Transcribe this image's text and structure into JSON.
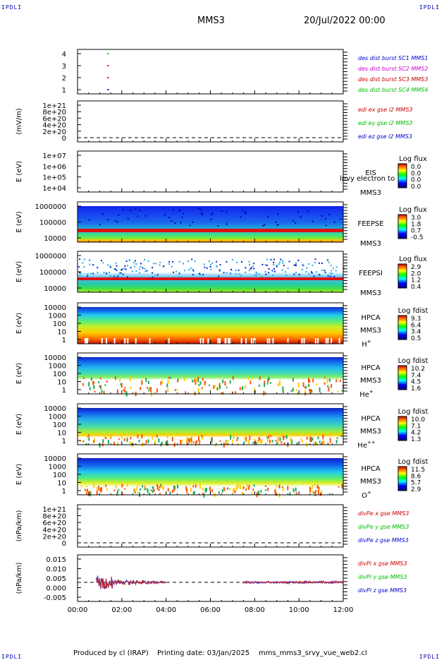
{
  "header": {
    "corner_left": "IPDLI",
    "corner_right": "IPDLI",
    "spacecraft": "MMS3",
    "date_time": "20/Jul/2022 00:00",
    "footer_left_corner": "IPDLI",
    "footer_right_corner": "IPDLI"
  },
  "footer": {
    "produced": "Produced by cl (IRAP)",
    "printing": "Printing date: 03/Jan/2025",
    "script": "mms_mms3_srvy_vue_web2.cl"
  },
  "chart_data": [
    {
      "id": "panel-burst",
      "type": "scatter",
      "ylabel": "",
      "yticks": [
        "4",
        "3",
        "2",
        "1"
      ],
      "ylim": [
        0.5,
        4.5
      ],
      "legend": [
        {
          "text": "des dist burst SC1 MMS1",
          "color": "#0000cc"
        },
        {
          "text": "des dist burst SC2 MMS2",
          "color": "#cc00cc"
        },
        {
          "text": "des dist burst SC3 MMS3",
          "color": "#cc0000"
        },
        {
          "text": "des dist burst SC4 MMS4",
          "color": "#00bb00"
        }
      ],
      "points": [
        {
          "x": 1.35,
          "y": 4,
          "color": "#00bb00"
        },
        {
          "x": 1.35,
          "y": 3,
          "color": "#cc0000"
        },
        {
          "x": 1.35,
          "y": 2,
          "color": "#cc0000"
        },
        {
          "x": 1.35,
          "y": 1,
          "color": "#0000cc"
        }
      ]
    },
    {
      "id": "panel-edi",
      "type": "line",
      "ylabel": "(mV/m)",
      "yticks": [
        "1e+21",
        "8e+20",
        "6e+20",
        "4e+20",
        "2e+20",
        "0"
      ],
      "legend": [
        {
          "text": "edi ex gse l2 MMS3",
          "color": "#cc0000"
        },
        {
          "text": "edi ey gse l2 MMS3",
          "color": "#00bb00"
        },
        {
          "text": "edi ez gse l2 MMS3",
          "color": "#0000cc"
        }
      ]
    },
    {
      "id": "panel-eis",
      "type": "heatmap",
      "ylabel": "E (eV)",
      "yticks": [
        "1e+07",
        "1e+06",
        "1e+05",
        "1e+04"
      ],
      "instrument": "EIS",
      "spacecraft": "MMS3",
      "overlay": "lnvy electron to",
      "colorbar_title": "Log flux",
      "colorbar_ticks": [
        "0.0",
        "0.0",
        "0.0",
        "0.0"
      ]
    },
    {
      "id": "panel-feepse",
      "type": "heatmap",
      "ylabel": "E (eV)",
      "yticks": [
        "1000000",
        "100000",
        "10000"
      ],
      "instrument": "FEEPSE",
      "spacecraft": "MMS3",
      "colorbar_title": "Log flux",
      "colorbar_ticks": [
        "3.0",
        "1.8",
        "0.7",
        "-0.5"
      ]
    },
    {
      "id": "panel-feepsi",
      "type": "heatmap",
      "ylabel": "E (eV)",
      "yticks": [
        "1000000",
        "100000",
        "10000"
      ],
      "instrument": "FEEPSI",
      "spacecraft": "MMS3",
      "colorbar_title": "Log flux",
      "colorbar_ticks": [
        "2.9",
        "2.0",
        "1.2",
        "0.4"
      ]
    },
    {
      "id": "panel-hpca-h",
      "type": "heatmap",
      "ylabel": "E (eV)",
      "yticks": [
        "10000",
        "1000",
        "100",
        "10",
        "1"
      ],
      "instrument": "HPCA",
      "spacecraft": "MMS3",
      "species": "H",
      "species_sup": "+",
      "colorbar_title": "Log fdist",
      "colorbar_ticks": [
        "9.3",
        "6.4",
        "3.4",
        "0.5"
      ]
    },
    {
      "id": "panel-hpca-he",
      "type": "heatmap",
      "ylabel": "E (eV)",
      "yticks": [
        "10000",
        "1000",
        "100",
        "10",
        "1"
      ],
      "instrument": "HPCA",
      "spacecraft": "MMS3",
      "species": "He",
      "species_sup": "+",
      "colorbar_title": "Log fdist",
      "colorbar_ticks": [
        "10.2",
        "7.4",
        "4.5",
        "1.6"
      ]
    },
    {
      "id": "panel-hpca-he2",
      "type": "heatmap",
      "ylabel": "E (eV)",
      "yticks": [
        "10000",
        "1000",
        "100",
        "10",
        "1"
      ],
      "instrument": "HPCA",
      "spacecraft": "MMS3",
      "species": "He",
      "species_sup": "++",
      "colorbar_title": "Log fdist",
      "colorbar_ticks": [
        "10.0",
        "7.1",
        "4.2",
        "1.3"
      ]
    },
    {
      "id": "panel-hpca-o",
      "type": "heatmap",
      "ylabel": "E (eV)",
      "yticks": [
        "10000",
        "1000",
        "100",
        "10",
        "1"
      ],
      "instrument": "HPCA",
      "spacecraft": "MMS3",
      "species": "O",
      "species_sup": "+",
      "colorbar_title": "Log fdist",
      "colorbar_ticks": [
        "11.5",
        "8.6",
        "5.7",
        "2.9"
      ]
    },
    {
      "id": "panel-divpe",
      "type": "line",
      "ylabel": "(nPa/km)",
      "yticks": [
        "1e+21",
        "8e+20",
        "6e+20",
        "4e+20",
        "2e+20",
        "0"
      ],
      "legend": [
        {
          "text": "divPe x gse MMS3",
          "color": "#cc0000"
        },
        {
          "text": "divPe y gse MMS3",
          "color": "#00bb00"
        },
        {
          "text": "divPe z gse MMS3",
          "color": "#0000cc"
        }
      ]
    },
    {
      "id": "panel-divpi",
      "type": "line",
      "ylabel": "(nPa/km)",
      "yticks": [
        "0.015",
        "0.010",
        "0.005",
        "0.000",
        "-0.005"
      ],
      "ylim": [
        -0.009,
        0.016
      ],
      "legend": [
        {
          "text": "divPi x gse MMS3",
          "color": "#cc0000"
        },
        {
          "text": "divPi y gse MMS3",
          "color": "#00bb00"
        },
        {
          "text": "divPi z gse MMS3",
          "color": "#0000cc"
        }
      ],
      "data_intervals_hours": [
        [
          0.85,
          4.0
        ],
        [
          7.45,
          12.0
        ]
      ]
    }
  ],
  "x_axis": {
    "ticks": [
      "00:00",
      "02:00",
      "04:00",
      "06:00",
      "08:00",
      "10:00",
      "12:00"
    ],
    "xlim_hours": [
      0,
      12
    ]
  }
}
